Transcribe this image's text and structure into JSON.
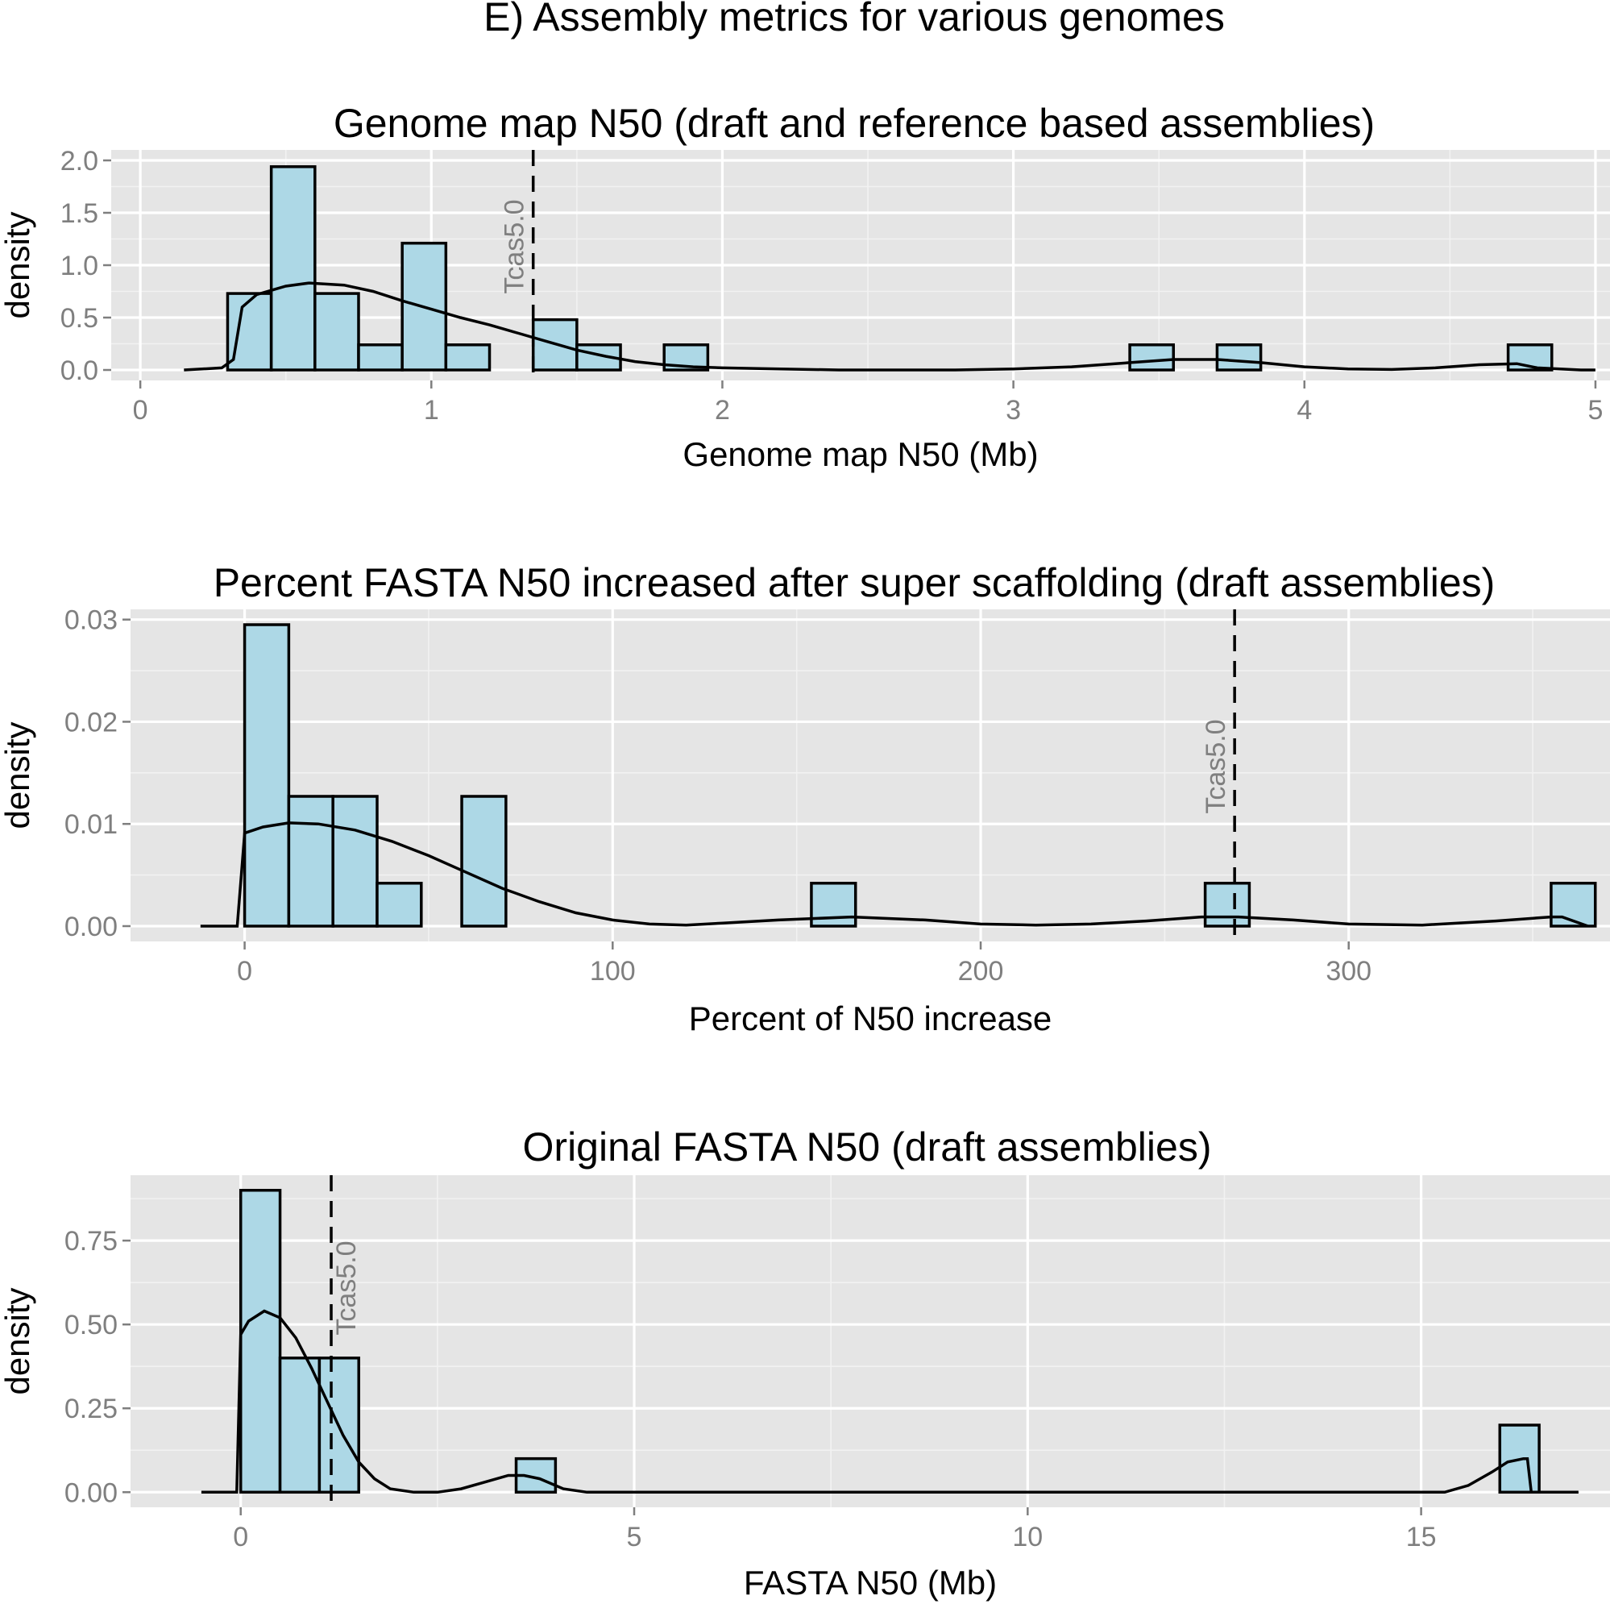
{
  "figure_title": "E) Assembly metrics for various genomes",
  "chart_data": [
    {
      "type": "bar",
      "title": "Genome map N50 (draft and reference based assemblies)",
      "xlabel": "Genome map N50 (Mb)",
      "ylabel": "density",
      "xlim": [
        -0.1,
        5.05
      ],
      "ylim": [
        -0.1,
        2.1
      ],
      "xticks": [
        0,
        1,
        2,
        3,
        4,
        5
      ],
      "xtick_labels": [
        "0",
        "1",
        "2",
        "3",
        "4",
        "5"
      ],
      "yticks": [
        0,
        0.5,
        1,
        1.5,
        2
      ],
      "ytick_labels": [
        "0.0",
        "0.5",
        "1.0",
        "1.5",
        "2.0"
      ],
      "bins": [
        {
          "x0": 0.3,
          "x1": 0.45,
          "value": 0.73
        },
        {
          "x0": 0.45,
          "x1": 0.6,
          "value": 1.94
        },
        {
          "x0": 0.6,
          "x1": 0.75,
          "value": 0.73
        },
        {
          "x0": 0.75,
          "x1": 0.9,
          "value": 0.24
        },
        {
          "x0": 0.9,
          "x1": 1.05,
          "value": 1.21
        },
        {
          "x0": 1.05,
          "x1": 1.2,
          "value": 0.24
        },
        {
          "x0": 1.35,
          "x1": 1.5,
          "value": 0.48
        },
        {
          "x0": 1.5,
          "x1": 1.65,
          "value": 0.24
        },
        {
          "x0": 1.8,
          "x1": 1.95,
          "value": 0.24
        },
        {
          "x0": 3.4,
          "x1": 3.55,
          "value": 0.24
        },
        {
          "x0": 3.7,
          "x1": 3.85,
          "value": 0.24
        },
        {
          "x0": 4.7,
          "x1": 4.85,
          "value": 0.24
        }
      ],
      "density_curve": {
        "x": [
          0.15,
          0.28,
          0.32,
          0.35,
          0.4,
          0.5,
          0.58,
          0.7,
          0.8,
          0.9,
          1.0,
          1.1,
          1.2,
          1.3,
          1.4,
          1.5,
          1.6,
          1.7,
          1.8,
          1.9,
          2.0,
          2.2,
          2.4,
          2.6,
          2.8,
          3.0,
          3.2,
          3.4,
          3.55,
          3.7,
          3.85,
          4.0,
          4.15,
          4.3,
          4.45,
          4.6,
          4.73,
          4.8,
          4.95,
          5.0
        ],
        "y": [
          0.0,
          0.02,
          0.1,
          0.6,
          0.72,
          0.8,
          0.83,
          0.81,
          0.75,
          0.66,
          0.58,
          0.5,
          0.43,
          0.35,
          0.27,
          0.19,
          0.13,
          0.08,
          0.05,
          0.03,
          0.02,
          0.01,
          0.0,
          0.0,
          0.0,
          0.01,
          0.03,
          0.07,
          0.1,
          0.1,
          0.07,
          0.03,
          0.01,
          0.005,
          0.02,
          0.05,
          0.06,
          0.02,
          0.0,
          0.0
        ]
      },
      "reference_line": {
        "x": 1.35,
        "label": "Tcas5.0"
      }
    },
    {
      "type": "bar",
      "title": "Percent FASTA N50 increased after super scaffolding (draft assemblies)",
      "xlabel": "Percent of N50 increase",
      "ylabel": "density",
      "xlim": [
        -31,
        371
      ],
      "ylim": [
        -0.0015,
        0.031
      ],
      "xticks": [
        0,
        100,
        200,
        300
      ],
      "xtick_labels": [
        "0",
        "100",
        "200",
        "300"
      ],
      "yticks": [
        0,
        0.01,
        0.02,
        0.03
      ],
      "ytick_labels": [
        "0.00",
        "0.01",
        "0.02",
        "0.03"
      ],
      "bins": [
        {
          "x0": 0,
          "x1": 12,
          "value": 0.0295
        },
        {
          "x0": 12,
          "x1": 24,
          "value": 0.0127
        },
        {
          "x0": 24,
          "x1": 36,
          "value": 0.0127
        },
        {
          "x0": 36,
          "x1": 48,
          "value": 0.0042
        },
        {
          "x0": 59,
          "x1": 71,
          "value": 0.0127
        },
        {
          "x0": 154,
          "x1": 166,
          "value": 0.0042
        },
        {
          "x0": 261,
          "x1": 273,
          "value": 0.0042
        },
        {
          "x0": 355,
          "x1": 367,
          "value": 0.0042
        }
      ],
      "density_curve": {
        "x": [
          -12,
          -2,
          0,
          5,
          12,
          20,
          30,
          40,
          50,
          60,
          70,
          80,
          90,
          100,
          110,
          120,
          130,
          145,
          165,
          185,
          200,
          215,
          230,
          245,
          260,
          270,
          285,
          300,
          320,
          340,
          355,
          358,
          365
        ],
        "y": [
          0.0,
          0.0,
          0.0091,
          0.0097,
          0.0101,
          0.01,
          0.0094,
          0.0083,
          0.0069,
          0.0053,
          0.0037,
          0.0024,
          0.0013,
          0.0006,
          0.0002,
          0.0001,
          0.0003,
          0.0006,
          0.0009,
          0.0006,
          0.0002,
          0.0001,
          0.0002,
          0.0005,
          0.0009,
          0.0009,
          0.0006,
          0.0002,
          0.0001,
          0.0005,
          0.0009,
          0.0009,
          0.0
        ]
      },
      "reference_line": {
        "x": 269,
        "label": "Tcas5.0"
      }
    },
    {
      "type": "bar",
      "title": "Original FASTA N50 (draft assemblies)",
      "xlabel": "FASTA N50 (Mb)",
      "ylabel": "density",
      "xlim": [
        -1.4,
        17.4
      ],
      "ylim": [
        -0.045,
        0.945
      ],
      "xticks": [
        0,
        5,
        10,
        15
      ],
      "xtick_labels": [
        "0",
        "5",
        "10",
        "15"
      ],
      "yticks": [
        0,
        0.25,
        0.5,
        0.75
      ],
      "ytick_labels": [
        "0.00",
        "0.25",
        "0.50",
        "0.75"
      ],
      "bins": [
        {
          "x0": 0,
          "x1": 0.5,
          "value": 0.9
        },
        {
          "x0": 0.5,
          "x1": 1.0,
          "value": 0.4
        },
        {
          "x0": 1.0,
          "x1": 1.5,
          "value": 0.4
        },
        {
          "x0": 3.5,
          "x1": 4.0,
          "value": 0.1
        },
        {
          "x0": 16.0,
          "x1": 16.5,
          "value": 0.2
        }
      ],
      "density_curve": {
        "x": [
          -0.5,
          -0.05,
          0.0,
          0.1,
          0.3,
          0.5,
          0.7,
          0.9,
          1.1,
          1.3,
          1.5,
          1.7,
          1.9,
          2.2,
          2.5,
          2.8,
          3.1,
          3.4,
          3.6,
          3.8,
          4.1,
          4.4,
          5.0,
          8.0,
          12.0,
          15.0,
          15.3,
          15.6,
          15.9,
          16.1,
          16.3,
          16.35,
          16.4,
          17.0
        ],
        "y": [
          0.0,
          0.0,
          0.47,
          0.51,
          0.54,
          0.52,
          0.46,
          0.37,
          0.27,
          0.17,
          0.09,
          0.04,
          0.01,
          0.0,
          0.0,
          0.01,
          0.03,
          0.05,
          0.05,
          0.04,
          0.01,
          0.0,
          0.0,
          0.0,
          0.0,
          0.0,
          0.0,
          0.02,
          0.06,
          0.09,
          0.1,
          0.1,
          0.0,
          0.0
        ]
      },
      "reference_line": {
        "x": 1.15,
        "label": "Tcas5.0"
      }
    }
  ]
}
